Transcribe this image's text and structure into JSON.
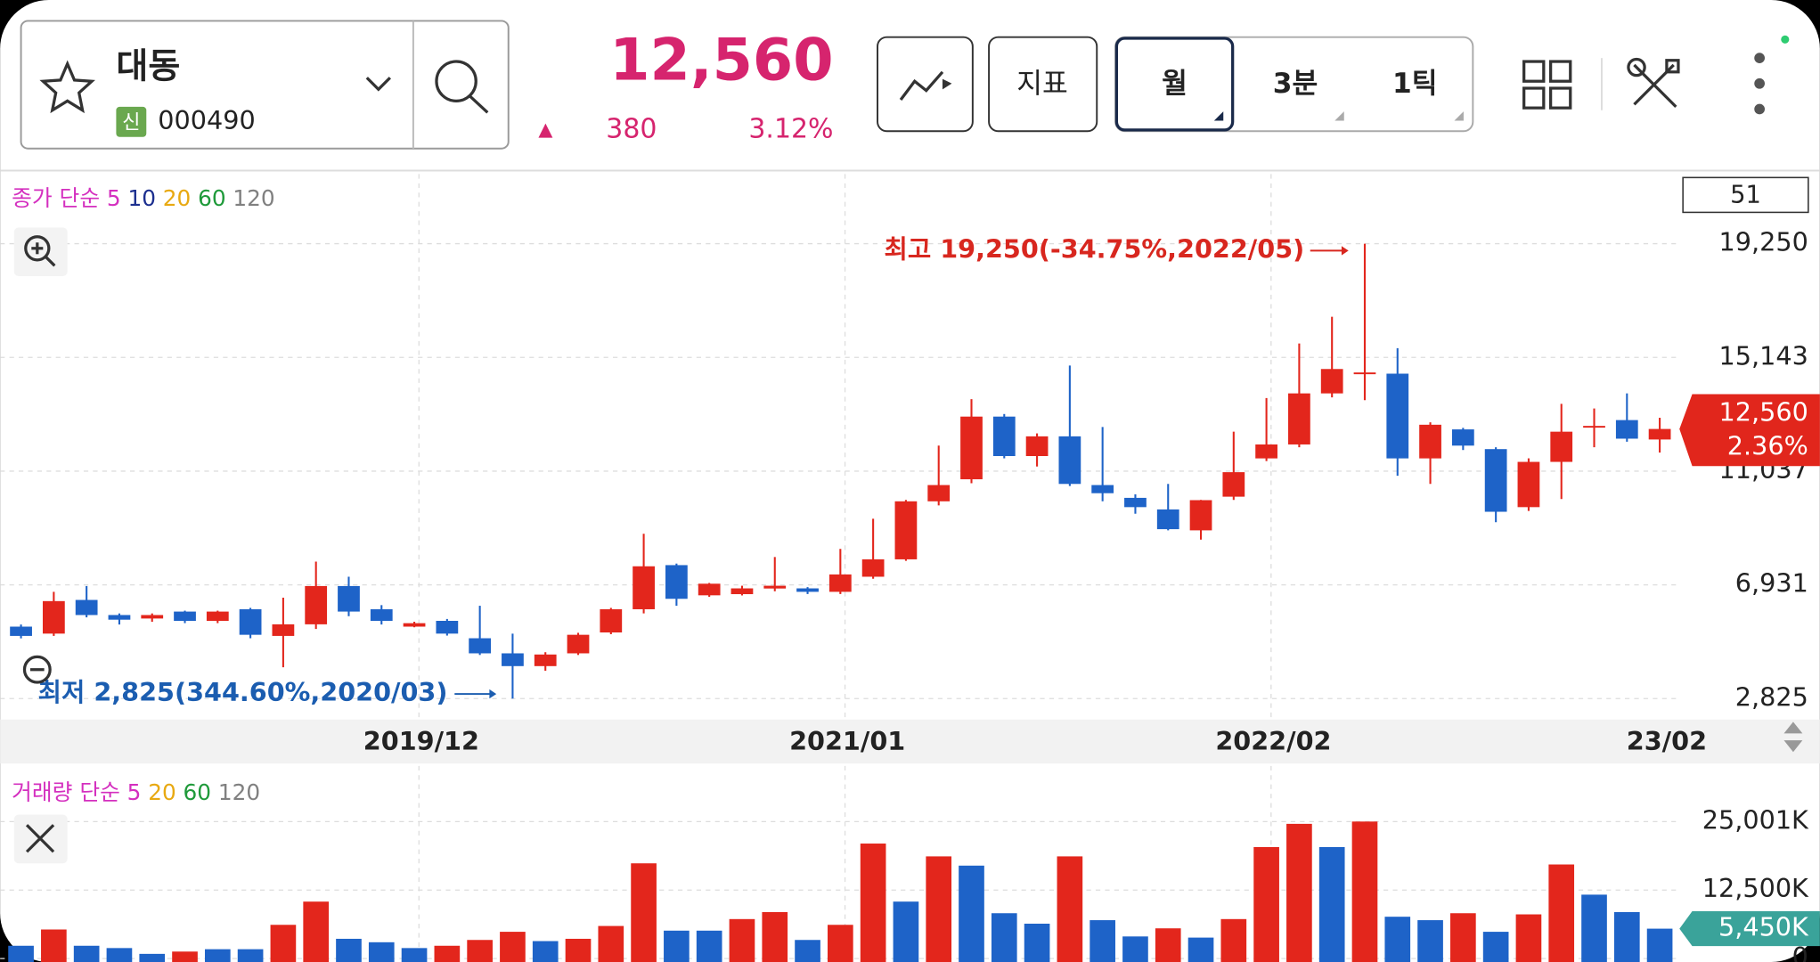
{
  "header": {
    "name": "대동",
    "badge": "신",
    "code": "000490",
    "price": "12,560",
    "change_arrow": "▲",
    "change": "380",
    "change_rate": "3.12%"
  },
  "toolbar": {
    "indicator": "지표",
    "periods": [
      "월",
      "3분",
      "1틱"
    ]
  },
  "chart_data": [
    {
      "type": "candlestick",
      "legend": {
        "title": "종가 단순",
        "items": [
          {
            "name": "5",
            "color": "#d42fbf"
          },
          {
            "name": "10",
            "color": "#1c2f8f"
          },
          {
            "name": "20",
            "color": "#e8a912"
          },
          {
            "name": "60",
            "color": "#1f9a3a"
          },
          {
            "name": "120",
            "color": "#808080"
          }
        ]
      },
      "candle_count": 51,
      "categories": [
        null,
        null,
        null,
        null,
        null,
        null,
        null,
        null,
        null,
        null,
        null,
        null,
        "2019/12",
        null,
        null,
        null,
        null,
        null,
        null,
        null,
        null,
        null,
        null,
        null,
        null,
        "2021/01",
        null,
        null,
        null,
        null,
        null,
        null,
        null,
        null,
        null,
        null,
        null,
        null,
        "2022/02",
        null,
        null,
        null,
        null,
        null,
        null,
        null,
        null,
        null,
        null,
        null,
        "23/02"
      ],
      "open": [
        5423,
        5171,
        6387,
        5842,
        5716,
        5967,
        5632,
        6051,
        5088,
        5507,
        6889,
        6051,
        5423,
        5632,
        5004,
        4459,
        3998,
        4459,
        5213,
        6051,
        7644,
        6554,
        6596,
        6800,
        6805,
        6680,
        7225,
        7853,
        9948,
        10744,
        13007,
        11582,
        12294,
        10535,
        10073,
        9655,
        8900,
        10115,
        11498,
        12001,
        13845,
        14590,
        14557,
        11498,
        12545,
        11833,
        9738,
        11372,
        12650,
        12881,
        12180
      ],
      "high": [
        5500,
        6680,
        6889,
        5900,
        5900,
        6000,
        6000,
        6100,
        6470,
        7769,
        7225,
        6200,
        5600,
        5700,
        6177,
        5171,
        4500,
        5200,
        6100,
        8775,
        7700,
        7000,
        6900,
        7937,
        6850,
        8230,
        9320,
        10000,
        11959,
        13635,
        13100,
        12400,
        14850,
        12630,
        10200,
        10576,
        10000,
        12462,
        13677,
        15646,
        16610,
        19250,
        15479,
        12800,
        12600,
        11900,
        11500,
        13467,
        13300,
        13845,
        12965
      ],
      "low": [
        5000,
        5088,
        5758,
        5500,
        5600,
        5550,
        5550,
        5004,
        3956,
        5340,
        5800,
        5500,
        5400,
        5100,
        4400,
        2825,
        3831,
        4400,
        5150,
        5900,
        6177,
        6500,
        6550,
        6700,
        6600,
        6600,
        7150,
        7800,
        9800,
        10600,
        11500,
        11205,
        10500,
        9948,
        9500,
        8900,
        8565,
        10000,
        11400,
        11900,
        13700,
        13600,
        10870,
        10576,
        11800,
        9194,
        9600,
        10032,
        11900,
        12100,
        11708
      ],
      "close": [
        5088,
        6345,
        5842,
        5674,
        5842,
        5632,
        5967,
        5129,
        5507,
        6889,
        5967,
        5632,
        5548,
        5171,
        4459,
        3998,
        4417,
        5129,
        6051,
        7602,
        6428,
        6973,
        6805,
        6900,
        6680,
        7308,
        7853,
        9948,
        10535,
        13007,
        11582,
        12294,
        10576,
        10241,
        9738,
        8942,
        9990,
        11000,
        12001,
        13845,
        14725,
        14600,
        11498,
        12713,
        11959,
        9571,
        11372,
        12462,
        12671,
        12210,
        12560
      ],
      "up_color": "#e3261c",
      "down_color": "#1e63c8",
      "ylim": [
        2155,
        21764
      ],
      "yticks": [
        {
          "value": 2825,
          "label": "2,825"
        },
        {
          "value": 6931,
          "label": "6,931"
        },
        {
          "value": 11037,
          "label": "11,037"
        },
        {
          "value": 15143,
          "label": "15,143"
        },
        {
          "value": 19250,
          "label": "19,250"
        }
      ],
      "grid": true,
      "annotations": [
        {
          "text": "최고 19,250(-34.75%,2022/05)",
          "color": "#d8271f"
        },
        {
          "text": "최저 2,825(344.60%,2020/03)",
          "color": "#1b5db0"
        }
      ],
      "last_price_label": "12,560",
      "last_change_label": "2.36%"
    },
    {
      "type": "bar",
      "legend": {
        "title": "거래량 단순",
        "items": [
          {
            "name": "5",
            "color": "#d42fbf"
          },
          {
            "name": "20",
            "color": "#e8a912"
          },
          {
            "name": "60",
            "color": "#1f9a3a"
          },
          {
            "name": "120",
            "color": "#808080"
          }
        ]
      },
      "values": [
        2330,
        5300,
        2330,
        1910,
        850,
        1270,
        1700,
        1700,
        6150,
        10390,
        3600,
        2970,
        1910,
        2330,
        3390,
        4880,
        3180,
        3600,
        5940,
        17380,
        5090,
        5090,
        7200,
        8480,
        3390,
        6150,
        20990,
        10390,
        18650,
        16960,
        8270,
        6360,
        18650,
        7000,
        4030,
        5510,
        3820,
        7200,
        20350,
        24590,
        20350,
        25010,
        7630,
        7000,
        8270,
        4880,
        8060,
        17170,
        11660,
        8480,
        5450
      ],
      "colors": [
        "#1e63c8",
        "#e3261c",
        "#1e63c8",
        "#1e63c8",
        "#1e63c8",
        "#e3261c",
        "#1e63c8",
        "#1e63c8",
        "#e3261c",
        "#e3261c",
        "#1e63c8",
        "#1e63c8",
        "#1e63c8",
        "#e3261c",
        "#e3261c",
        "#e3261c",
        "#1e63c8",
        "#e3261c",
        "#e3261c",
        "#e3261c",
        "#1e63c8",
        "#1e63c8",
        "#e3261c",
        "#e3261c",
        "#1e63c8",
        "#e3261c",
        "#e3261c",
        "#1e63c8",
        "#e3261c",
        "#1e63c8",
        "#1e63c8",
        "#1e63c8",
        "#e3261c",
        "#1e63c8",
        "#1e63c8",
        "#e3261c",
        "#1e63c8",
        "#e3261c",
        "#e3261c",
        "#e3261c",
        "#1e63c8",
        "#e3261c",
        "#1e63c8",
        "#1e63c8",
        "#e3261c",
        "#1e63c8",
        "#e3261c",
        "#e3261c",
        "#1e63c8",
        "#1e63c8",
        "#1e63c8"
      ],
      "ylim": [
        0,
        35170
      ],
      "yticks": [
        0,
        {
          "value": 12500,
          "label": "12,500K"
        },
        {
          "value": 25001,
          "label": "25,001K"
        }
      ],
      "last_label": "5,450K"
    }
  ]
}
